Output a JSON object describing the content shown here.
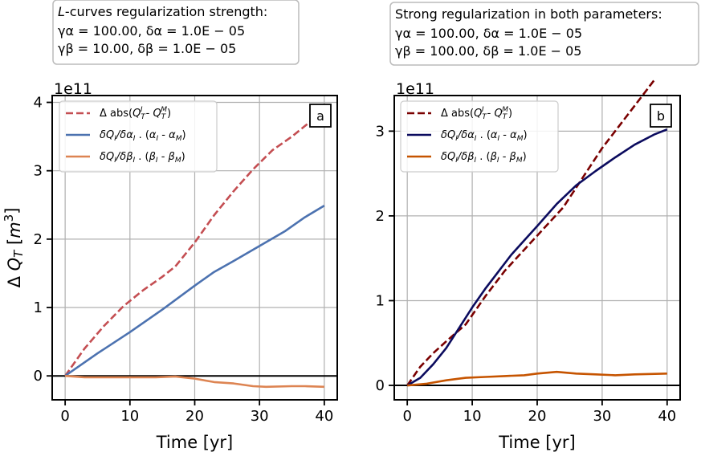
{
  "chart_data": [
    {
      "type": "line",
      "panel_label": "a",
      "info_box": {
        "line1": "L-curves regularization strength:",
        "line2": "γα = 100.00, δα = 1.0E − 05",
        "line3": "γβ = 10.00, δβ = 1.0E − 05"
      },
      "offset_text": "1e11",
      "xlabel": "Time [yr]",
      "ylabel": "Δ QT [m3]",
      "xlim": [
        -2,
        42
      ],
      "ylim": [
        -0.35,
        4.1
      ],
      "xticks": [
        0,
        10,
        20,
        30,
        40
      ],
      "xtick_labels": [
        "0",
        "10",
        "20",
        "30",
        "40"
      ],
      "yticks": [
        0,
        1,
        2,
        3,
        4
      ],
      "ytick_labels": [
        "0",
        "1",
        "2",
        "3",
        "4"
      ],
      "grid": true,
      "legend_location": "top-left",
      "series": [
        {
          "name": "Δ abs(QT^I - QT^M)",
          "legend": "Δ abs(QᵀI - QᵀM)",
          "color": "#c44e52",
          "dash": true,
          "x": [
            0,
            3,
            6,
            9,
            12,
            15,
            17,
            20,
            23,
            26,
            29,
            32,
            35,
            38
          ],
          "y": [
            0,
            0.4,
            0.73,
            1.02,
            1.25,
            1.45,
            1.6,
            1.95,
            2.35,
            2.7,
            3.02,
            3.3,
            3.5,
            3.73
          ]
        },
        {
          "name": "δQI/δαI . (αI - αM)",
          "legend": "δQI/δαI . (αI - αM)",
          "color": "#4c72b0",
          "dash": false,
          "x": [
            0,
            5,
            10,
            15,
            20,
            23,
            26,
            30,
            34,
            37,
            40
          ],
          "y": [
            0,
            0.33,
            0.64,
            0.97,
            1.32,
            1.52,
            1.68,
            1.9,
            2.12,
            2.32,
            2.49
          ]
        },
        {
          "name": "δQI/δβI . (βI - βM)",
          "legend": "δQI/δβI . (βI - βM)",
          "color": "#dd8452",
          "dash": false,
          "x": [
            0,
            3,
            8,
            14,
            17,
            20,
            23,
            26,
            29,
            31,
            35,
            37,
            40
          ],
          "y": [
            0,
            -0.02,
            -0.02,
            -0.02,
            -0.01,
            -0.04,
            -0.09,
            -0.11,
            -0.15,
            -0.16,
            -0.15,
            -0.15,
            -0.16
          ]
        }
      ]
    },
    {
      "type": "line",
      "panel_label": "b",
      "info_box": {
        "line1": "Strong regularization in both parameters:",
        "line2": "γα = 100.00, δα = 1.0E − 05",
        "line3": "γβ = 100.00, δβ = 1.0E − 05"
      },
      "offset_text": "1e11",
      "xlabel": "Time [yr]",
      "ylabel": "",
      "xlim": [
        -2,
        42
      ],
      "ylim": [
        -0.17,
        3.42
      ],
      "xticks": [
        0,
        10,
        20,
        30,
        40
      ],
      "xtick_labels": [
        "0",
        "10",
        "20",
        "30",
        "40"
      ],
      "yticks": [
        0,
        1,
        2,
        3
      ],
      "ytick_labels": [
        "0",
        "1",
        "2",
        "3"
      ],
      "grid": true,
      "legend_location": "top-left",
      "series": [
        {
          "name": "Δ abs(QT^I - QT^M)",
          "legend": "Δ abs(QᵀI - QᵀM)",
          "color": "#7a0000",
          "dash": true,
          "x": [
            0,
            2,
            4,
            6,
            9,
            12,
            15,
            18,
            21,
            24,
            27,
            30,
            33,
            36,
            38
          ],
          "y": [
            0,
            0.22,
            0.38,
            0.52,
            0.72,
            1.05,
            1.35,
            1.6,
            1.85,
            2.1,
            2.45,
            2.8,
            3.1,
            3.4,
            3.6
          ]
        },
        {
          "name": "δQI/δαI . (αI - αM)",
          "legend": "δQI/δαI . (αI - αM)",
          "color": "#0b0b5e",
          "dash": false,
          "x": [
            0,
            2,
            4,
            6,
            8,
            10,
            12,
            14,
            16,
            18,
            20,
            23,
            26,
            29,
            32,
            35,
            38,
            40
          ],
          "y": [
            0,
            0.09,
            0.25,
            0.44,
            0.68,
            0.92,
            1.14,
            1.34,
            1.54,
            1.71,
            1.88,
            2.14,
            2.36,
            2.53,
            2.69,
            2.84,
            2.96,
            3.02
          ]
        },
        {
          "name": "δQI/δβI . (βI - βM)",
          "legend": "δQI/δβI . (βI - βM)",
          "color": "#c65400",
          "dash": false,
          "x": [
            0,
            3,
            6,
            9,
            12,
            15,
            18,
            20,
            23,
            26,
            29,
            32,
            35,
            40
          ],
          "y": [
            0,
            0.02,
            0.06,
            0.09,
            0.1,
            0.11,
            0.12,
            0.14,
            0.16,
            0.14,
            0.13,
            0.12,
            0.13,
            0.14
          ]
        }
      ]
    }
  ]
}
